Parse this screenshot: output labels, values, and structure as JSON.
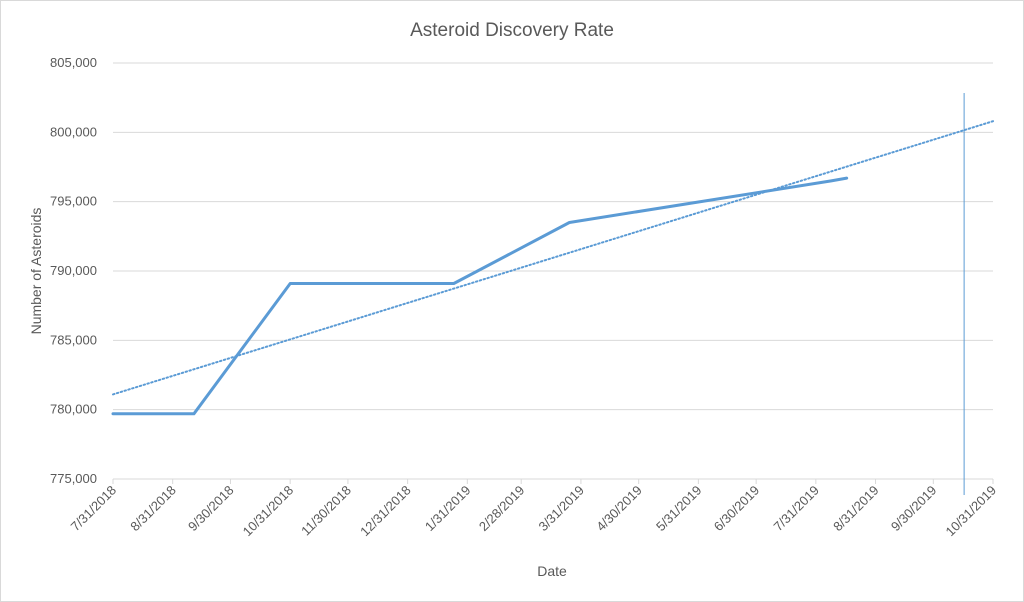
{
  "chart_data": {
    "type": "line",
    "title": "Asteroid Discovery Rate",
    "xlabel": "Date",
    "ylabel": "Number of Asteroids",
    "x_ticks": [
      "7/31/2018",
      "8/31/2018",
      "9/30/2018",
      "10/31/2018",
      "11/30/2018",
      "12/31/2018",
      "1/31/2019",
      "2/28/2019",
      "3/31/2019",
      "4/30/2019",
      "5/31/2019",
      "6/30/2019",
      "7/31/2019",
      "8/31/2019",
      "9/30/2019",
      "10/31/2019"
    ],
    "y_ticks": [
      "775,000",
      "780,000",
      "785,000",
      "790,000",
      "795,000",
      "800,000",
      "805,000"
    ],
    "xlim": [
      "2018-07-31",
      "2019-10-31"
    ],
    "ylim": [
      775000,
      805000
    ],
    "grid": "horizontal",
    "legend": "none",
    "series": [
      {
        "color": "#5b9bd5",
        "x": [
          "2018-07-31",
          "2018-09-11",
          "2018-10-31",
          "2019-01-24",
          "2019-03-25",
          "2019-08-08",
          "2019-08-16"
        ],
        "y": [
          779700,
          779700,
          789100,
          789100,
          793500,
          796500,
          796700
        ]
      }
    ],
    "trendline": {
      "style": "dotted",
      "color": "#5b9bd5",
      "type": "linear",
      "x": [
        "2018-07-31",
        "2019-10-31"
      ],
      "y": [
        781100,
        800800
      ]
    },
    "vertical_marker": {
      "x": "2019-10-16",
      "color": "#5b9bd5"
    }
  }
}
